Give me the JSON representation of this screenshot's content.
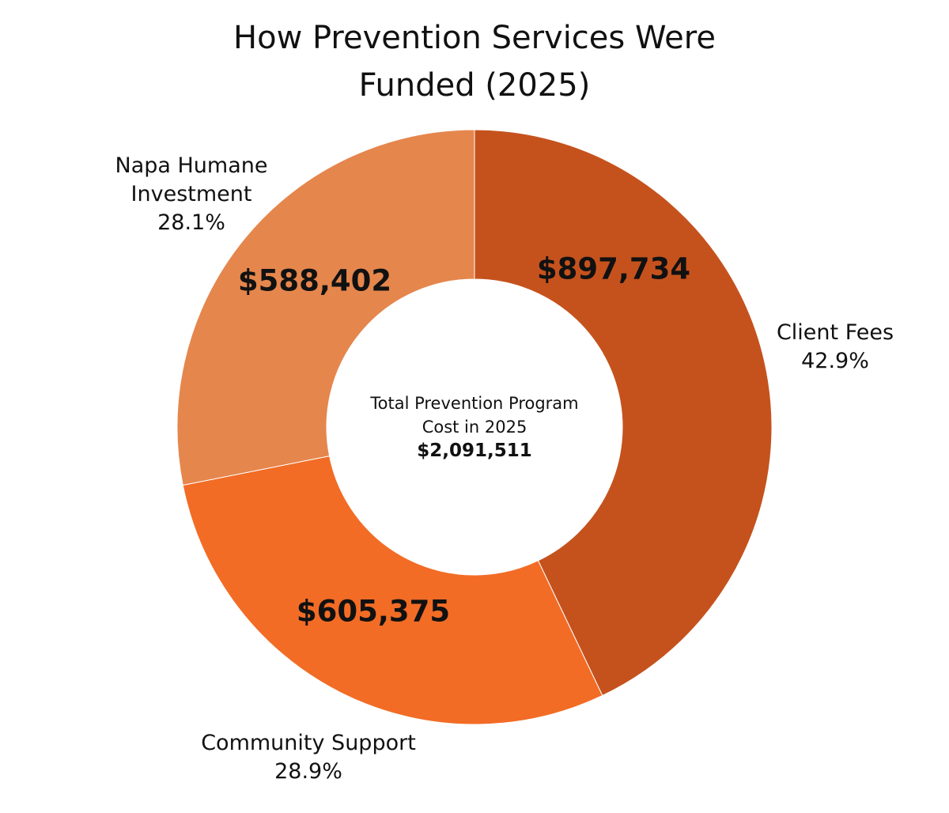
{
  "chart_data": {
    "type": "pie",
    "donut": true,
    "title": [
      "How Prevention Services Were",
      "Funded (2025)"
    ],
    "slices": [
      {
        "label": [
          "Client Fees"
        ],
        "percent_label": "42.9%",
        "percent": 42.9,
        "value": 897734,
        "value_label": "$897,734",
        "color": "#C5521D"
      },
      {
        "label": [
          "Community Support"
        ],
        "percent_label": "28.9%",
        "percent": 28.9,
        "value": 605375,
        "value_label": "$605,375",
        "color": "#F26C26"
      },
      {
        "label": [
          "Napa Humane",
          "Investment"
        ],
        "percent_label": "28.1%",
        "percent": 28.1,
        "value": 588402,
        "value_label": "$588,402",
        "color": "#E5864D"
      }
    ],
    "start": "top",
    "direction": "clockwise",
    "center_text": [
      "Total Prevention Program",
      "Cost in 2025"
    ],
    "center_total": "$2,091,511",
    "legend": "none"
  }
}
